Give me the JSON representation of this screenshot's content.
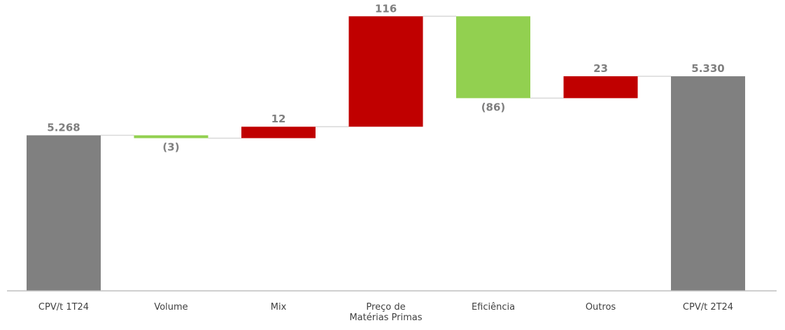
{
  "chart_data": {
    "type": "bar",
    "subtype": "waterfall",
    "categories": [
      "CPV/t 1T24",
      "Volume",
      "Mix",
      "Preço de Matérias Primas",
      "Eficiência",
      "Outros",
      "CPV/t 2T24"
    ],
    "category_lines": [
      [
        "CPV/t 1T24"
      ],
      [
        "Volume"
      ],
      [
        "Mix"
      ],
      [
        "Preço de",
        "Matérias Primas"
      ],
      [
        "Eficiência"
      ],
      [
        "Outros"
      ],
      [
        "CPV/t 2T24"
      ]
    ],
    "bar_kinds": [
      "total",
      "delta",
      "delta",
      "delta",
      "delta",
      "delta",
      "total"
    ],
    "values": [
      5268,
      -3,
      12,
      116,
      -86,
      23,
      5330
    ],
    "data_labels": [
      "5.268",
      "(3)",
      "12",
      "116",
      "(86)",
      "23",
      "5.330"
    ],
    "title": "",
    "xlabel": "",
    "ylabel": "",
    "grid": false,
    "legend": "none",
    "colors": {
      "total": "#808080",
      "increase": "#c00000",
      "decrease": "#92d050",
      "connector": "#d9d9d9",
      "baseline": "#bfbfbf",
      "label": "#7f7f7f",
      "category_text": "#404040"
    }
  }
}
